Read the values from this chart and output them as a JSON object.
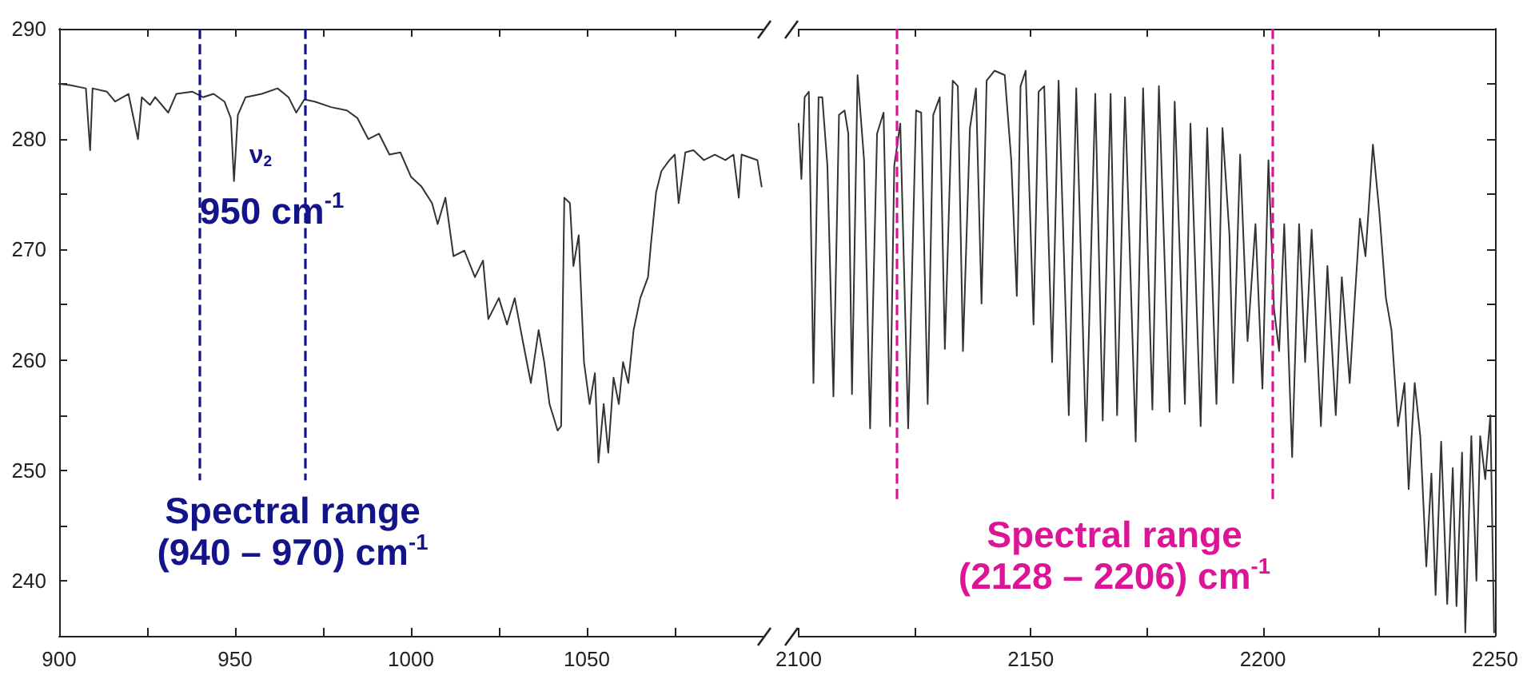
{
  "chart_data": [
    {
      "type": "line",
      "xlim": [
        900,
        1100
      ],
      "xticks": [
        900,
        {
          "value": 925,
          "label": null
        },
        950,
        {
          "value": 975,
          "label": null
        },
        1000,
        {
          "value": 1025,
          "label": null
        },
        1050,
        {
          "value": 1075,
          "label": null
        }
      ],
      "ylim": [
        235,
        290
      ],
      "yticks": [
        240,
        {
          "value": 245,
          "label": null
        },
        250,
        {
          "value": 255,
          "label": null
        },
        260,
        {
          "value": 265,
          "label": null
        },
        270,
        {
          "value": 275,
          "label": null
        },
        280,
        {
          "value": 285,
          "label": null
        },
        290
      ],
      "marker": "none",
      "line_style": "solid",
      "color": "#333333",
      "x": [
        900,
        903,
        907.6,
        908.8,
        909.5,
        913.6,
        915.9,
        919.7,
        922.4,
        923.5,
        925.8,
        927.3,
        931,
        933.3,
        937.9,
        940.9,
        943.9,
        947,
        948.8,
        949.7,
        950.8,
        953,
        957.6,
        962.1,
        965.2,
        967.4,
        969.7,
        972.7,
        977.3,
        981.8,
        984.8,
        987.9,
        990.9,
        993.9,
        997,
        1000,
        1003,
        1006,
        1007.6,
        1009.8,
        1012.1,
        1015.2,
        1018.2,
        1020.5,
        1022,
        1025,
        1027.3,
        1029.5,
        1031.8,
        1034.1,
        1036.3,
        1037.9,
        1039.4,
        1041.7,
        1042.7,
        1043.6,
        1045.2,
        1046.2,
        1047.7,
        1049.2,
        1050.8,
        1052.3,
        1053.3,
        1054.8,
        1056.1,
        1057.6,
        1059.1,
        1060.3,
        1061.8,
        1063.3,
        1065.2,
        1067.4,
        1068.2,
        1069.7,
        1071.2,
        1073.5,
        1075,
        1076.1,
        1078,
        1080.3,
        1083.3,
        1086.4,
        1089.4,
        1091.7,
        1093.2,
        1094,
        1098.5,
        1099.7
      ],
      "values": [
        285,
        284.9,
        284.6,
        279,
        284.6,
        284.3,
        283.4,
        284.1,
        280,
        283.8,
        283.1,
        283.8,
        282.4,
        284.1,
        284.3,
        283.8,
        284.1,
        283.4,
        281.9,
        276.2,
        282.2,
        283.8,
        284.1,
        284.6,
        283.8,
        282.4,
        283.6,
        283.4,
        282.9,
        282.6,
        281.9,
        280,
        280.5,
        278.6,
        278.8,
        276.6,
        275.7,
        274.2,
        272.3,
        274.7,
        269.4,
        269.9,
        267.5,
        269,
        263.7,
        265.6,
        263.2,
        265.6,
        261.7,
        257.9,
        262.7,
        259.8,
        256,
        253.6,
        254,
        274.7,
        274.2,
        268.5,
        271.3,
        259.8,
        256,
        258.8,
        250.7,
        256,
        251.6,
        258.4,
        256,
        259.8,
        257.9,
        262.7,
        265.6,
        267.5,
        270.4,
        275.2,
        277.1,
        278.1,
        278.6,
        274.2,
        278.8,
        279,
        278.1,
        278.6,
        278.1,
        278.6,
        274.7,
        278.6,
        278.1,
        275.7
      ],
      "ref_lines": [
        {
          "axis": "x",
          "value": 940,
          "color": "#14148a",
          "line_style": "dashed"
        },
        {
          "axis": "x",
          "value": 970,
          "color": "#14148a",
          "line_style": "dashed"
        }
      ],
      "annotations": [
        "ν$_{2}$",
        "950 cm$^{-1}$",
        "Spectral range\n(940 – 970) cm$^{-1}$"
      ]
    },
    {
      "type": "line",
      "xlim": [
        2100,
        2250
      ],
      "xticks": [
        2100,
        {
          "value": 2125,
          "label": null
        },
        2150,
        {
          "value": 2175,
          "label": null
        },
        2200,
        {
          "value": 2225,
          "label": null
        },
        2250
      ],
      "ylim": [
        235,
        290
      ],
      "yticks": [
        240,
        {
          "value": 245,
          "label": null
        },
        250,
        {
          "value": 255,
          "label": null
        },
        260,
        {
          "value": 265,
          "label": null
        },
        270,
        {
          "value": 275,
          "label": null
        },
        280,
        {
          "value": 285,
          "label": null
        },
        290
      ],
      "tick_labels": "x",
      "marker": "none",
      "line_style": "solid",
      "color": "#333333",
      "x": [
        2100,
        2100.6,
        2101.3,
        2102.2,
        2103.2,
        2104.3,
        2105.1,
        2106.2,
        2107.5,
        2108.7,
        2109.9,
        2110.7,
        2111.5,
        2112.7,
        2114.1,
        2115.4,
        2116.9,
        2118.3,
        2119.7,
        2120.6,
        2121.9,
        2123.6,
        2125.3,
        2126.4,
        2127.8,
        2129,
        2130.4,
        2131.5,
        2133.2,
        2134.3,
        2135.4,
        2136.9,
        2138.2,
        2139.4,
        2140.5,
        2142.2,
        2144.4,
        2145.8,
        2147,
        2147.8,
        2148.9,
        2150.6,
        2151.7,
        2152.9,
        2154.6,
        2156,
        2158.2,
        2159.8,
        2161.9,
        2163.9,
        2165.5,
        2167.2,
        2168.6,
        2170.3,
        2172.6,
        2174.2,
        2176.2,
        2177.6,
        2179.9,
        2181,
        2183.2,
        2184.4,
        2186.6,
        2188,
        2190,
        2191.3,
        2192.8,
        2193.6,
        2195.1,
        2196.7,
        2198.4,
        2199.9,
        2201.2,
        2202.4,
        2203.5,
        2204.6,
        2206.3,
        2207.8,
        2209.1,
        2210.5,
        2212.5,
        2213.9,
        2215.7,
        2217,
        2218.7,
        2219.8,
        2220.9,
        2222.1,
        2223.7,
        2225.1,
        2226.5,
        2227.7,
        2229.1,
        2230.5,
        2231.4,
        2232.7,
        2233.9,
        2235.2,
        2236.3,
        2237.2,
        2238.4,
        2239.7,
        2240.9,
        2241.7,
        2242.9,
        2243.6,
        2244.9,
        2246,
        2246.8,
        2247.9,
        2249,
        2249.8
      ],
      "values": [
        281.4,
        276.4,
        283.8,
        284.3,
        257.9,
        283.8,
        283.8,
        277.6,
        256.7,
        282.2,
        282.6,
        280.5,
        256.9,
        285.8,
        278.1,
        253.8,
        280.5,
        282.4,
        254,
        277.6,
        281.4,
        253.8,
        282.6,
        282.4,
        256,
        282.2,
        283.8,
        261,
        285.3,
        284.8,
        260.8,
        281,
        284.6,
        265.1,
        285.3,
        286.2,
        285.8,
        278.1,
        265.8,
        284.8,
        286.2,
        263.2,
        284.3,
        284.8,
        259.8,
        285.3,
        255,
        284.6,
        252.6,
        284.1,
        254.5,
        284.1,
        255,
        283.8,
        252.6,
        284.6,
        255.5,
        284.8,
        255.3,
        283.4,
        256,
        281.4,
        254,
        281,
        256,
        281,
        271.3,
        257.9,
        278.6,
        261.7,
        272.3,
        257.4,
        278.1,
        264.6,
        260.8,
        272.3,
        251.2,
        272.3,
        259.8,
        271.8,
        254,
        268.5,
        255,
        267.5,
        257.9,
        265.6,
        272.8,
        269.4,
        279.5,
        273.3,
        265.6,
        262.7,
        254,
        257.9,
        248.3,
        257.9,
        253.1,
        241.3,
        249.7,
        238.7,
        252.6,
        237.9,
        250.2,
        237.7,
        251.6,
        235.3,
        253.1,
        240,
        253.1,
        249.2,
        255,
        235.3
      ],
      "ref_lines": [
        {
          "axis": "x",
          "value": 2121,
          "color": "#dc1496",
          "line_style": "dashed"
        },
        {
          "axis": "x",
          "value": 2202,
          "color": "#dc1496",
          "line_style": "dashed"
        }
      ],
      "annotations": [
        "Spectral range\n(2128 – 2206) cm$^{-1}$"
      ]
    }
  ]
}
